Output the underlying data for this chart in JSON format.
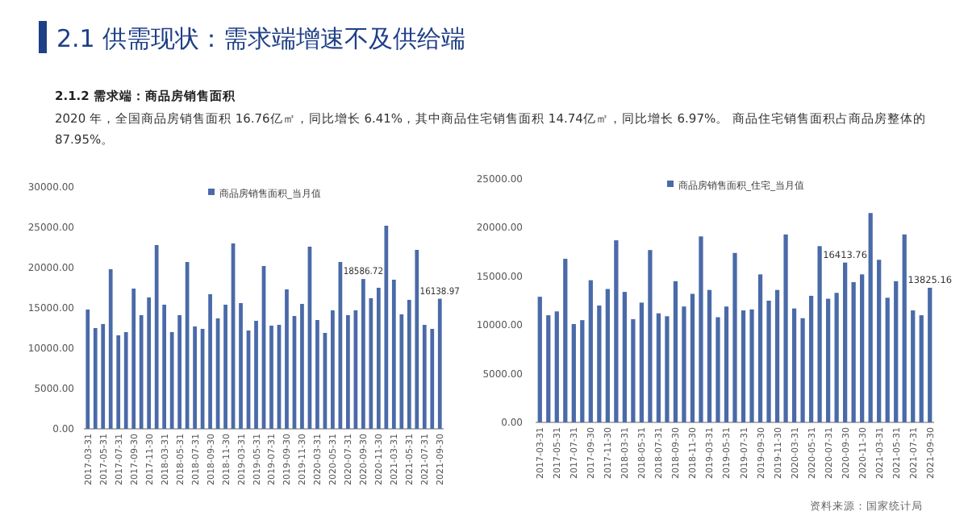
{
  "chart_data": [
    {
      "type": "bar",
      "title": "2.1 供需现状：需求端增速不及供给端",
      "subtitle": "2.1.2 需求端：商品房销售面积",
      "annotations": [
        "2020 年，全国商品房销售面积 16.76亿㎡，同比增长 6.41%，其中商品住宅销售面积 14.74亿㎡，同比增长 6.97%。 商品住宅销售面积占商品房整体的 87.95%。"
      ],
      "categories": [
        "2017-03-31",
        null,
        "2017-05-31",
        null,
        "2017-07-31",
        null,
        "2017-09-30",
        null,
        "2017-11-30",
        null,
        "2018-03-31",
        null,
        "2018-05-31",
        null,
        "2018-07-31",
        null,
        "2018-09-30",
        null,
        "2018-11-30",
        null,
        "2019-03-31",
        null,
        "2019-05-31",
        null,
        "2019-07-31",
        null,
        "2019-09-30",
        null,
        "2019-11-30",
        null,
        "2020-03-31",
        null,
        "2020-05-31",
        null,
        "2020-07-31",
        null,
        "2020-09-30",
        null,
        "2020-11-30",
        null,
        "2021-03-31",
        null,
        "2021-05-31",
        null,
        "2021-07-31",
        null,
        "2021-09-30"
      ],
      "series": [
        {
          "name": "商品房销售面积_当月值",
          "color": "#4a6aa8",
          "values": [
            14800,
            12500,
            13000,
            19800,
            11600,
            12000,
            17400,
            14100,
            16300,
            22800,
            15400,
            12000,
            14100,
            20700,
            12700,
            12400,
            16700,
            13700,
            15400,
            23000,
            15600,
            12200,
            13400,
            20200,
            12800,
            12900,
            17300,
            14000,
            15500,
            22600,
            13500,
            11900,
            14700,
            20700,
            14100,
            14700,
            18586.72,
            16200,
            17500,
            25200,
            18500,
            14200,
            16000,
            22200,
            12900,
            12400,
            16138.97
          ],
          "value_labels": [
            null,
            null,
            null,
            null,
            null,
            null,
            null,
            null,
            null,
            null,
            null,
            null,
            null,
            null,
            null,
            null,
            null,
            null,
            null,
            null,
            null,
            null,
            null,
            null,
            null,
            null,
            null,
            null,
            null,
            null,
            null,
            null,
            null,
            null,
            null,
            null,
            "18586.72",
            null,
            null,
            null,
            null,
            null,
            null,
            null,
            null,
            null,
            "16138.97"
          ]
        }
      ],
      "ylim": [
        0,
        30000
      ],
      "yticks": [
        {
          "value": 0,
          "label": "0.00"
        },
        {
          "value": 5000,
          "label": "5000.00"
        },
        {
          "value": 10000,
          "label": "10000.00"
        },
        {
          "value": 15000,
          "label": "15000.00"
        },
        {
          "value": 20000,
          "label": "20000.00"
        },
        {
          "value": 25000,
          "label": "25000.00"
        },
        {
          "value": 30000,
          "label": "30000.00"
        }
      ],
      "legend": "top",
      "grid": false
    },
    {
      "type": "bar",
      "annotations": [
        "资料来源：国家统计局"
      ],
      "categories": [
        "2017-03-31",
        null,
        "2017-05-31",
        null,
        "2017-07-31",
        null,
        "2017-09-30",
        null,
        "2017-11-30",
        null,
        "2018-03-31",
        null,
        "2018-05-31",
        null,
        "2018-07-31",
        null,
        "2018-09-30",
        null,
        "2018-11-30",
        null,
        "2019-03-31",
        null,
        "2019-05-31",
        null,
        "2019-07-31",
        null,
        "2019-09-30",
        null,
        "2019-11-30",
        null,
        "2020-03-31",
        null,
        "2020-05-31",
        null,
        "2020-07-31",
        null,
        "2020-09-30",
        null,
        "2020-11-30",
        null,
        "2021-03-31",
        null,
        "2021-05-31",
        null,
        "2021-07-31",
        null,
        "2021-09-30"
      ],
      "series": [
        {
          "name": "商品房销售面积_住宅_当月值",
          "color": "#4a6aa8",
          "values": [
            12900,
            11000,
            11400,
            16800,
            10100,
            10500,
            14600,
            12000,
            13700,
            18700,
            13400,
            10600,
            12300,
            17700,
            11200,
            10900,
            14500,
            11900,
            13200,
            19100,
            13600,
            10800,
            11900,
            17400,
            11500,
            11600,
            15200,
            12500,
            13600,
            19300,
            11700,
            10700,
            13000,
            18100,
            12700,
            13300,
            16413.76,
            14400,
            15200,
            21500,
            16700,
            12800,
            14500,
            19300,
            11500,
            11000,
            13825.16
          ],
          "value_labels": [
            null,
            null,
            null,
            null,
            null,
            null,
            null,
            null,
            null,
            null,
            null,
            null,
            null,
            null,
            null,
            null,
            null,
            null,
            null,
            null,
            null,
            null,
            null,
            null,
            null,
            null,
            null,
            null,
            null,
            null,
            null,
            null,
            null,
            null,
            null,
            null,
            "16413.76",
            null,
            null,
            null,
            null,
            null,
            null,
            null,
            null,
            null,
            "13825.16"
          ]
        }
      ],
      "ylim": [
        0,
        25000
      ],
      "yticks": [
        {
          "value": 0,
          "label": "0.00"
        },
        {
          "value": 5000,
          "label": "5000.00"
        },
        {
          "value": 10000,
          "label": "10000.00"
        },
        {
          "value": 15000,
          "label": "15000.00"
        },
        {
          "value": 20000,
          "label": "20000.00"
        },
        {
          "value": 25000,
          "label": "25000.00"
        }
      ],
      "legend": "top",
      "grid": false
    }
  ]
}
